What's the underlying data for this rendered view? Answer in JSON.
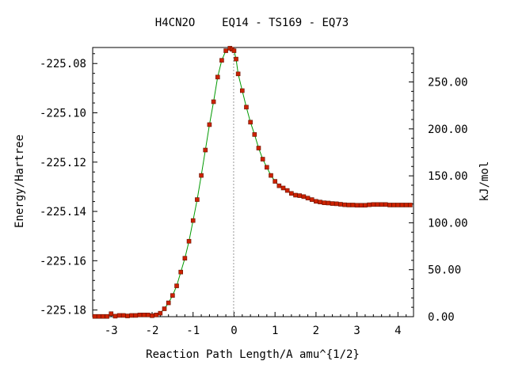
{
  "chart_data": {
    "type": "line",
    "title": "H4CN2O    EQ14 - TS169 - EQ73",
    "xlabel": "Reaction Path Length/A amu^{1/2}",
    "ylabel": "Energy/Hartree",
    "ylabel_right": "kJ/mol",
    "xlim": [
      -3.45,
      4.38
    ],
    "ylim": [
      -225.1827,
      -225.0735
    ],
    "y2lim": [
      0.0,
      286.7
    ],
    "x_ticks": [
      "-3",
      "-2",
      "-1",
      "0",
      "1",
      "2",
      "3",
      "4"
    ],
    "y_ticks": [
      "-225.08",
      "-225.10",
      "-225.12",
      "-225.14",
      "-225.16",
      "-225.18"
    ],
    "y2_ticks": [
      "0.00",
      "50.00",
      "100.00",
      "150.00",
      "200.00",
      "250.00"
    ],
    "ts_x": -0.01,
    "colors": {
      "line": "#009900",
      "marker": "#cc2200",
      "marker_edge": "#661100",
      "ts_line": "#999999"
    },
    "series": [
      {
        "x": [
          -3.4,
          -3.3,
          -3.2,
          -3.1,
          -3.0,
          -2.9,
          -2.8,
          -2.7,
          -2.6,
          -2.5,
          -2.4,
          -2.3,
          -2.2,
          -2.1,
          -2.0,
          -1.9,
          -1.8,
          -1.7,
          -1.6,
          -1.5,
          -1.4,
          -1.3,
          -1.2,
          -1.1,
          -1.0,
          -0.9,
          -0.8,
          -0.7,
          -0.6,
          -0.5,
          -0.4,
          -0.3,
          -0.2,
          -0.1,
          -0.05,
          0.0,
          0.05,
          0.1,
          0.2,
          0.3,
          0.4,
          0.5,
          0.6,
          0.7,
          0.8,
          0.9,
          1.0,
          1.1,
          1.2,
          1.3,
          1.4,
          1.5,
          1.6,
          1.7,
          1.8,
          1.9,
          2.0,
          2.1,
          2.2,
          2.3,
          2.4,
          2.5,
          2.6,
          2.7,
          2.8,
          2.9,
          3.0,
          3.1,
          3.2,
          3.3,
          3.4,
          3.5,
          3.6,
          3.7,
          3.8,
          3.9,
          4.0,
          4.1,
          4.2,
          4.3
        ],
        "y": [
          -225.1826,
          -225.1826,
          -225.1826,
          -225.1826,
          -225.1815,
          -225.1825,
          -225.1822,
          -225.1822,
          -225.1824,
          -225.1822,
          -225.1822,
          -225.182,
          -225.182,
          -225.182,
          -225.1823,
          -225.182,
          -225.1813,
          -225.1795,
          -225.1771,
          -225.1741,
          -225.1702,
          -225.1646,
          -225.159,
          -225.1521,
          -225.1437,
          -225.1352,
          -225.1254,
          -225.1151,
          -225.1048,
          -225.0955,
          -225.0855,
          -225.0787,
          -225.0748,
          -225.0738,
          -225.0742,
          -225.0748,
          -225.0782,
          -225.0842,
          -225.091,
          -225.0977,
          -225.1038,
          -225.1088,
          -225.1143,
          -225.1188,
          -225.1221,
          -225.1254,
          -225.1278,
          -225.1296,
          -225.1305,
          -225.1315,
          -225.1327,
          -225.1334,
          -225.1336,
          -225.134,
          -225.1346,
          -225.1352,
          -225.1359,
          -225.1362,
          -225.1365,
          -225.1366,
          -225.1368,
          -225.1369,
          -225.1371,
          -225.1373,
          -225.1374,
          -225.1374,
          -225.1375,
          -225.1375,
          -225.1375,
          -225.1373,
          -225.1372,
          -225.1372,
          -225.1372,
          -225.1372,
          -225.1374,
          -225.1374,
          -225.1374,
          -225.1374,
          -225.1374,
          -225.1374
        ]
      }
    ]
  }
}
